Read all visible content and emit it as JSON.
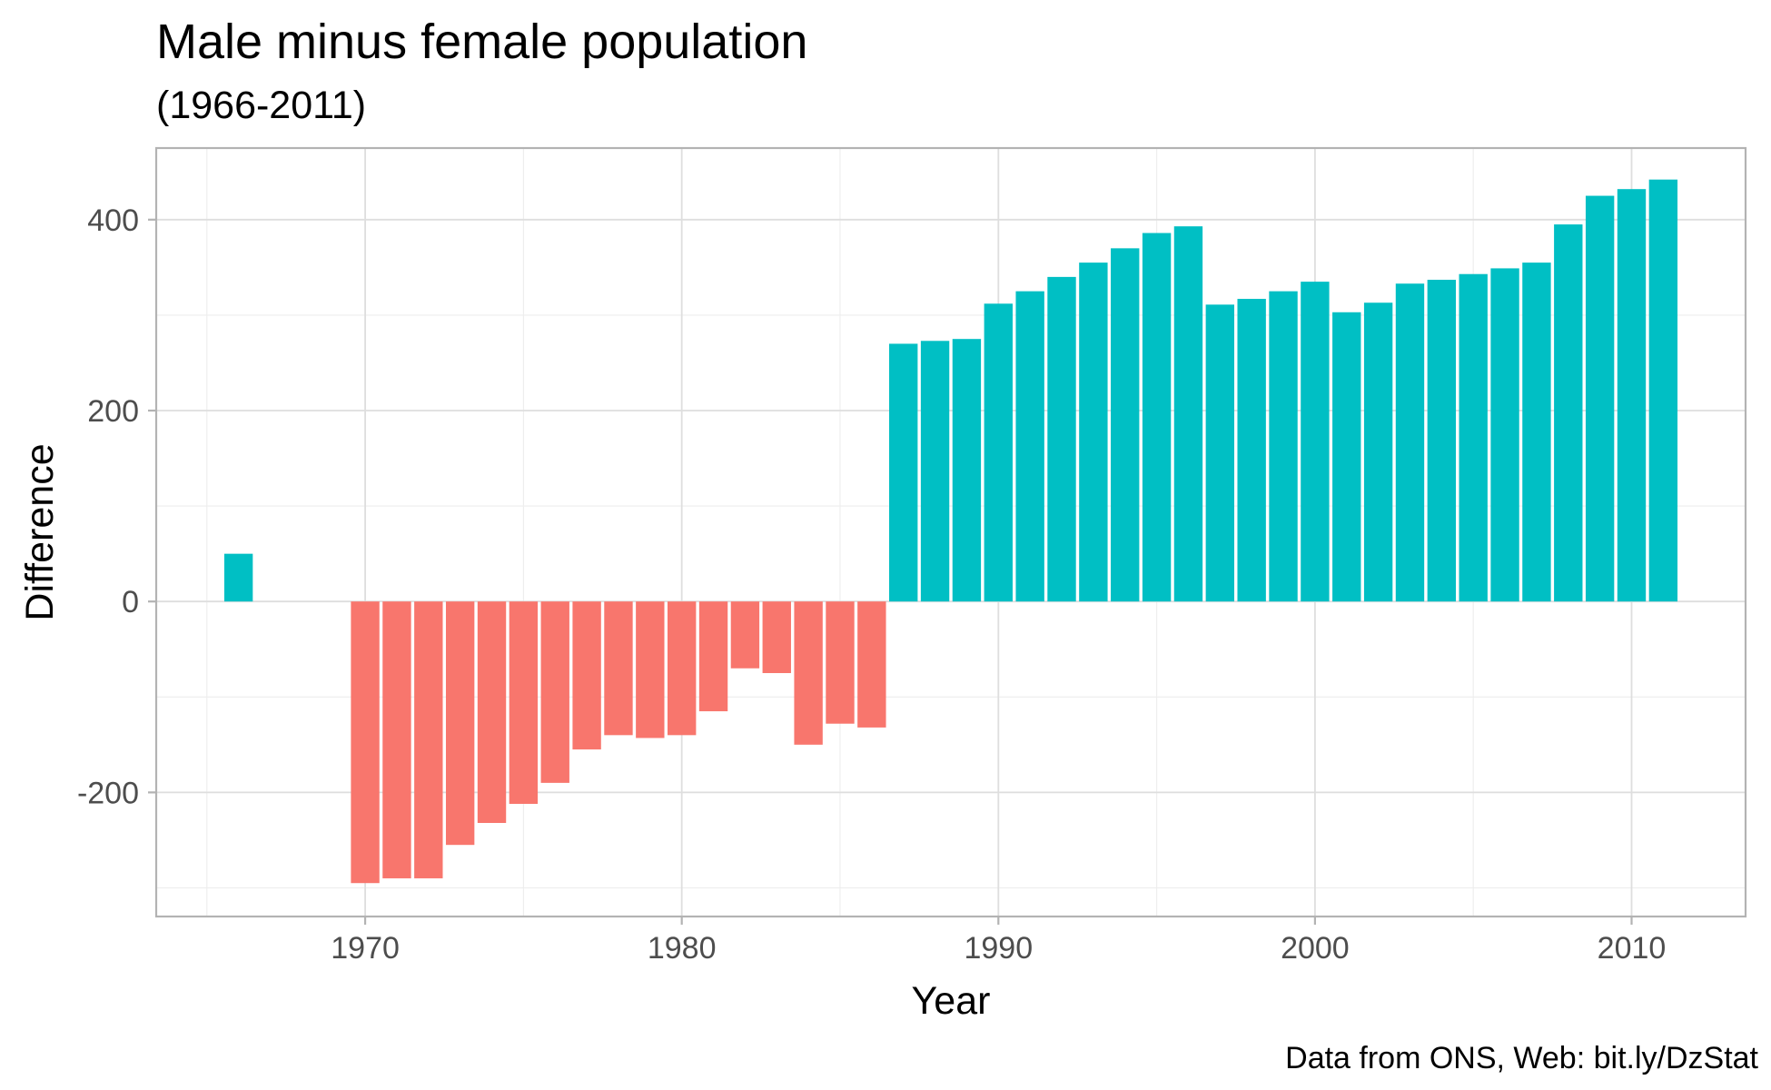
{
  "chart_data": {
    "type": "bar",
    "title": "Male minus female population",
    "subtitle": "(1966-2011)",
    "xlabel": "Year",
    "ylabel": "Difference",
    "caption": "Data from ONS, Web: bit.ly/DzStat",
    "xlim": [
      1963.4,
      2013.6
    ],
    "ylim": [
      -330,
      475
    ],
    "x_ticks": [
      1970,
      1980,
      1990,
      2000,
      2010
    ],
    "y_ticks": [
      -200,
      0,
      200,
      400
    ],
    "x_tick_labels": [
      "1970",
      "1980",
      "1990",
      "2000",
      "2010"
    ],
    "y_tick_labels": [
      "-200",
      "0",
      "200",
      "400"
    ],
    "grid": true,
    "legend": "none",
    "colors": {
      "positive": "#00bfc4",
      "negative": "#f8766d"
    },
    "x": [
      1966,
      1970,
      1971,
      1972,
      1973,
      1974,
      1975,
      1976,
      1977,
      1978,
      1979,
      1980,
      1981,
      1982,
      1983,
      1984,
      1985,
      1986,
      1987,
      1988,
      1989,
      1990,
      1991,
      1992,
      1993,
      1994,
      1995,
      1996,
      1997,
      1998,
      1999,
      2000,
      2001,
      2002,
      2003,
      2004,
      2005,
      2006,
      2007,
      2008,
      2009,
      2010,
      2011
    ],
    "values": [
      50,
      -295,
      -290,
      -290,
      -255,
      -232,
      -212,
      -190,
      -155,
      -140,
      -143,
      -140,
      -115,
      -70,
      -75,
      -150,
      -128,
      -132,
      270,
      273,
      275,
      312,
      325,
      340,
      355,
      370,
      386,
      393,
      311,
      317,
      325,
      335,
      303,
      313,
      333,
      337,
      343,
      349,
      355,
      395,
      425,
      432,
      442
    ]
  }
}
